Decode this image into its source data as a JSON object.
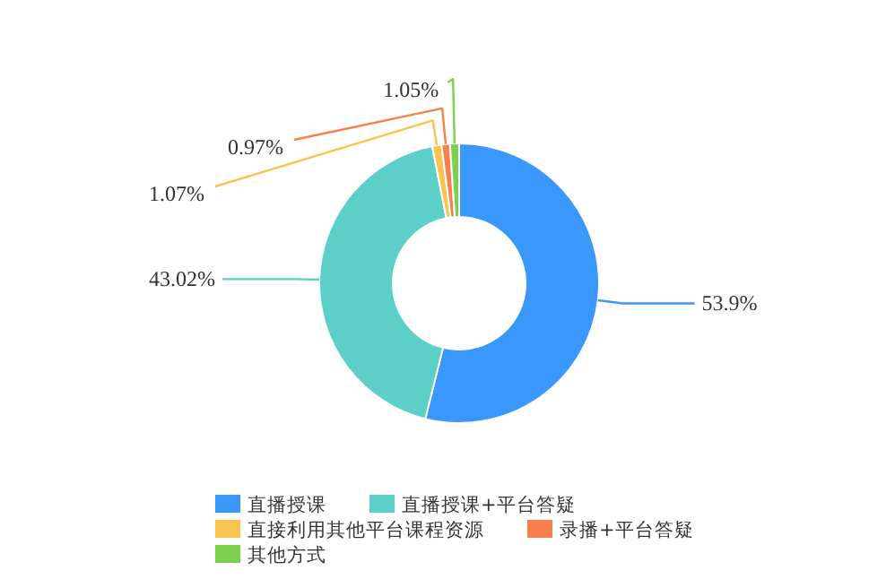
{
  "chart_data": {
    "type": "donut",
    "categories": [
      "直播授课",
      "直播授课+平台答疑",
      "直接利用其他平台课程资源",
      "录播+平台答疑",
      "其他方式"
    ],
    "values": [
      53.9,
      43.02,
      1.07,
      0.97,
      1.05
    ],
    "value_labels": [
      "53.9%",
      "43.02%",
      "1.07%",
      "0.97%",
      "1.05%"
    ],
    "colors": [
      "#3a98fc",
      "#5ccfc9",
      "#f9c34d",
      "#f7804e",
      "#7cd04c"
    ],
    "legend": "bottom"
  }
}
